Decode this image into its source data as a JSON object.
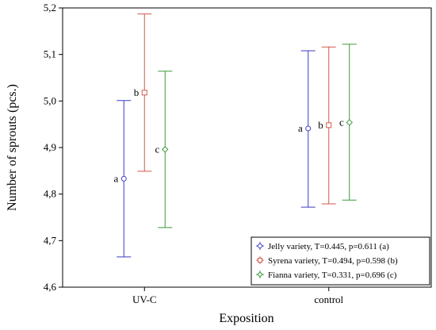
{
  "chart_data": {
    "type": "scatter",
    "subtype": "means-with-error-bars",
    "xlabel": "Exposition",
    "ylabel": "Number of sprouts (pcs.)",
    "categories": [
      "UV-C",
      "control"
    ],
    "ylim": [
      4.6,
      5.2
    ],
    "yticks": [
      "4,6",
      "4,7",
      "4,8",
      "4,9",
      "5,0",
      "5,1",
      "5,2"
    ],
    "grid": false,
    "legend_position": "bottom-right",
    "series": [
      {
        "name": "Jelly variety, T=0.445, p=0.611 (a)",
        "color": "#3b3bc4",
        "marker": "circle",
        "point_label": "a",
        "means": [
          4.833,
          4.941
        ],
        "lower": [
          4.665,
          4.772
        ],
        "upper": [
          5.001,
          5.108
        ]
      },
      {
        "name": "Syrena variety, T=0.494, p=0.598 (b)",
        "color": "#d05a4a",
        "marker": "square",
        "point_label": "b",
        "means": [
          5.018,
          4.948
        ],
        "lower": [
          4.849,
          4.779
        ],
        "upper": [
          5.187,
          5.116
        ]
      },
      {
        "name": "Fianna variety, T=0.331, p=0.696 (c)",
        "color": "#3a9a3a",
        "marker": "diamond",
        "point_label": "c",
        "means": [
          4.896,
          4.954
        ],
        "lower": [
          4.728,
          4.787
        ],
        "upper": [
          5.064,
          5.122
        ]
      }
    ]
  }
}
